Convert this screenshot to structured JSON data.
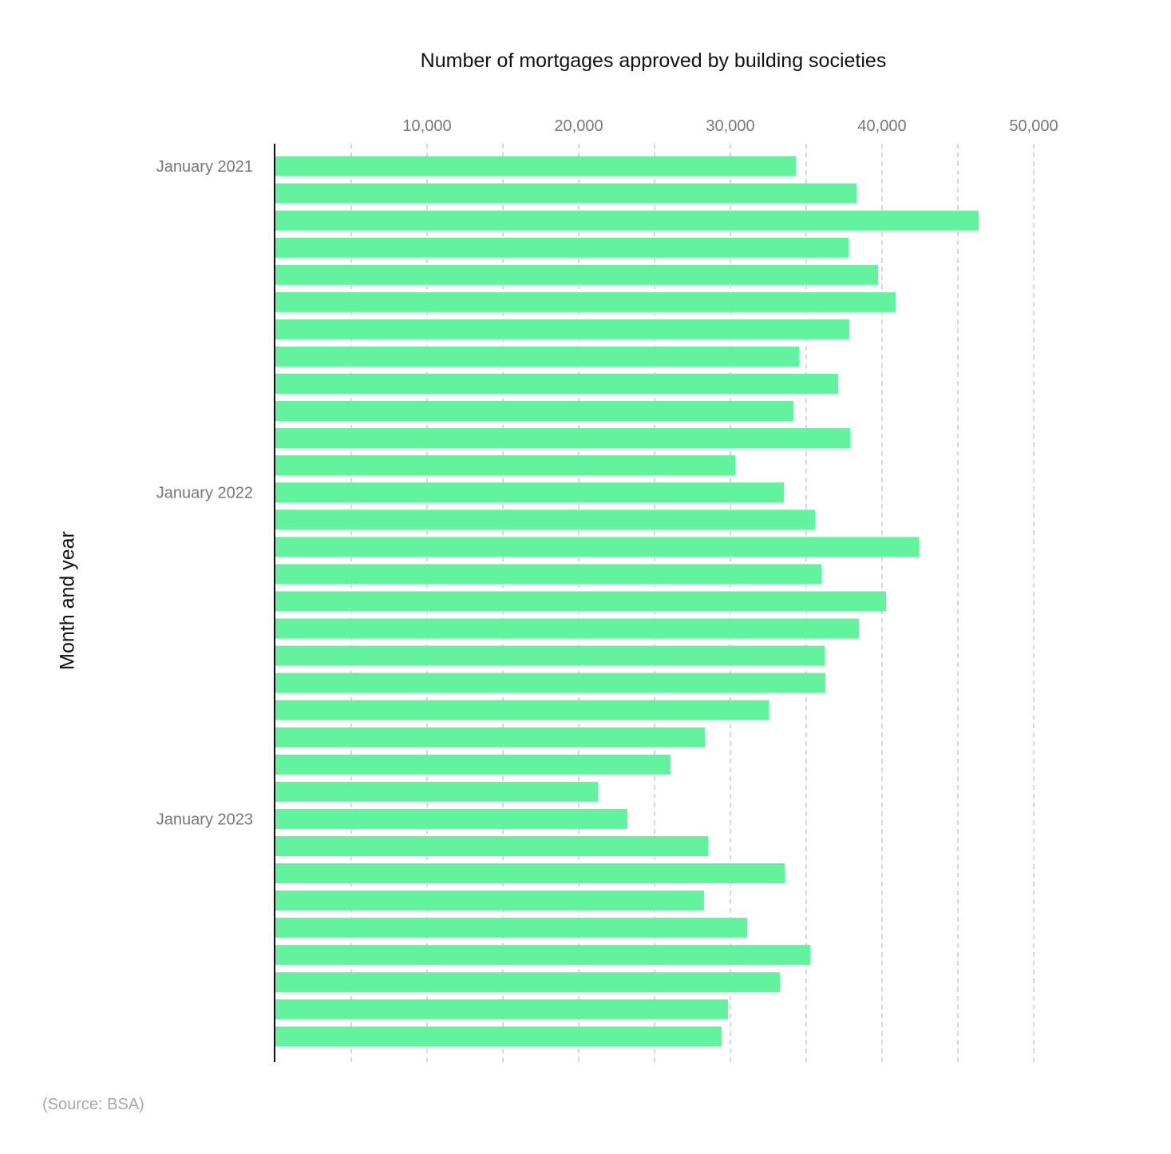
{
  "chart_data": {
    "type": "bar",
    "orientation": "horizontal",
    "title": "Number of mortgages approved by building societies",
    "xlabel": "",
    "ylabel": "Month and year",
    "xlim": [
      0,
      52500
    ],
    "x_ticks": [
      10000,
      20000,
      30000,
      40000,
      50000
    ],
    "x_tick_labels": [
      "10,000",
      "20,000",
      "30,000",
      "40,000",
      "50,000"
    ],
    "gridlines_every": 5000,
    "grid": true,
    "y_tick_labels": [
      {
        "index": 0,
        "label": "January 2021"
      },
      {
        "index": 12,
        "label": "January 2022"
      },
      {
        "index": 24,
        "label": "January 2023"
      }
    ],
    "values": [
      34320,
      38320,
      46370,
      37790,
      39740,
      40900,
      37840,
      34530,
      37110,
      34160,
      37900,
      30320,
      33530,
      35580,
      42420,
      36000,
      40260,
      38470,
      36210,
      36260,
      32530,
      28320,
      26050,
      21260,
      23210,
      28530,
      33580,
      28260,
      31110,
      35260,
      33260,
      29840,
      29420
    ],
    "bar_color": "#63f29e",
    "source": "(Source: BSA)"
  }
}
